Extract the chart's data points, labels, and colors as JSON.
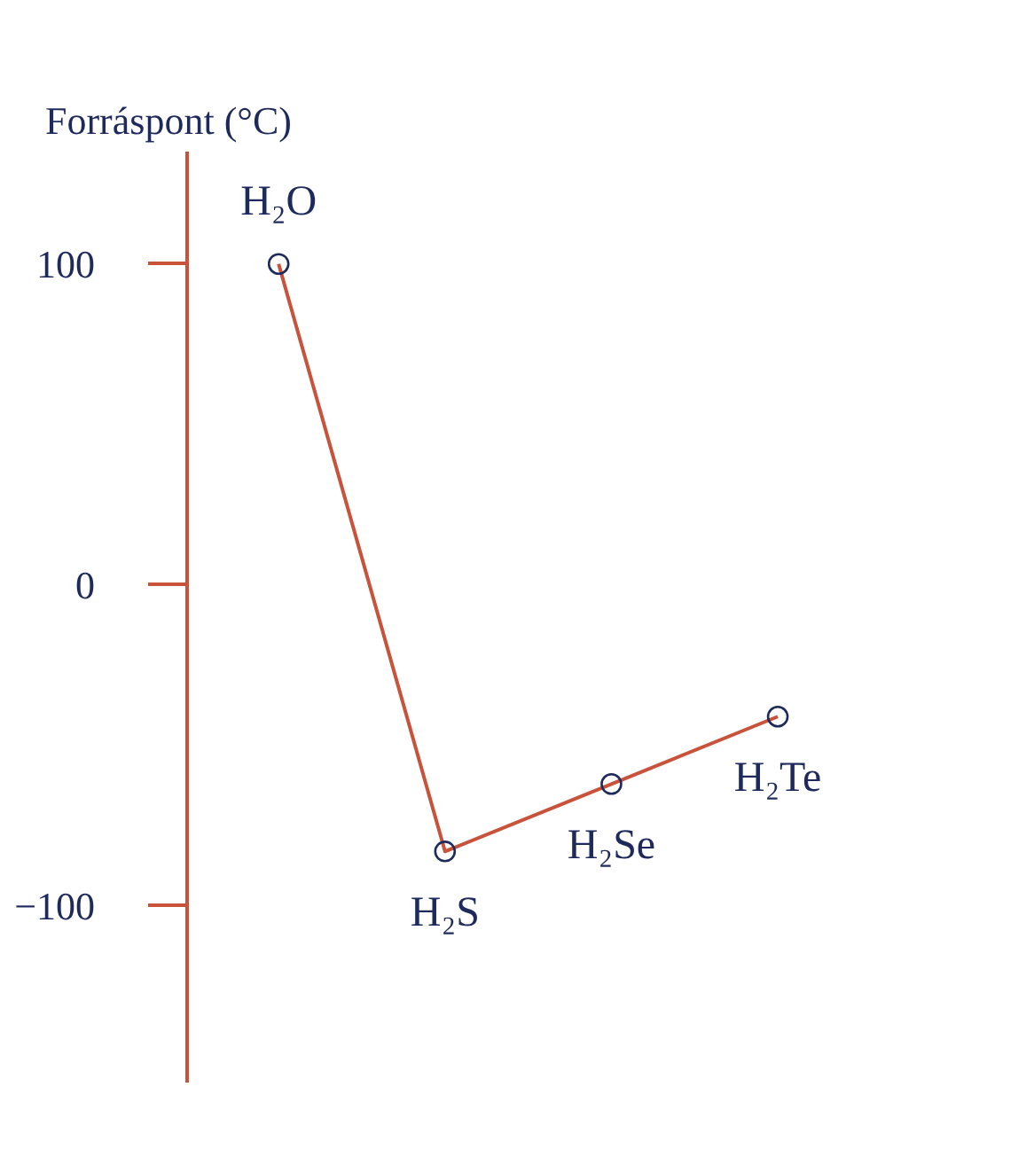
{
  "chart_data": {
    "type": "line",
    "title": "Forráspont (°C)",
    "categories": [
      "H₂O",
      "H₂S",
      "H₂Se",
      "H₂Te"
    ],
    "values": [
      100,
      -83,
      -62,
      -41
    ],
    "color": "#c8523a",
    "ylim": [
      -155,
      135
    ],
    "yticks": [
      -100,
      0,
      100
    ],
    "marker": "circle",
    "tick_labels": "y"
  }
}
